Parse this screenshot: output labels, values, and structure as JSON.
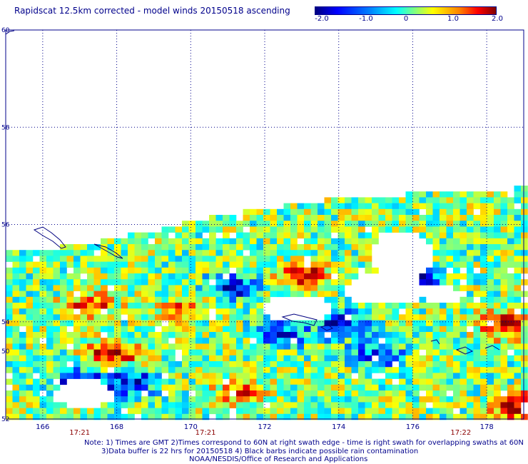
{
  "title": "Rapidscat 12.5km corrected - model winds 20150518 ascending",
  "colorbar": {
    "labels": [
      "-2.0",
      "-1.0",
      "0",
      "1.0",
      "2.0"
    ],
    "label_values": [
      -2.0,
      -1.0,
      0,
      1.0,
      2.0
    ],
    "range": [
      -2.0,
      2.0
    ],
    "colors": [
      "#00007f",
      "#0000ff",
      "#0080ff",
      "#00ffff",
      "#80ff80",
      "#ffff00",
      "#ff8000",
      "#ff0000",
      "#800000"
    ]
  },
  "map": {
    "lon_range": [
      165.0,
      179.0
    ],
    "lat_range": [
      52.0,
      60.0
    ],
    "lat_ticks": [
      {
        "value": 60,
        "label": "60"
      },
      {
        "value": 58,
        "label": "58"
      },
      {
        "value": 56,
        "label": "56"
      },
      {
        "value": 54,
        "label": "54"
      },
      {
        "value": 52,
        "label": "52"
      },
      {
        "value": 50,
        "label": "50"
      }
    ],
    "lon_ticks": [
      {
        "value": 166,
        "label": "166"
      },
      {
        "value": 168,
        "label": "168"
      },
      {
        "value": 170,
        "label": "170"
      },
      {
        "value": 172,
        "label": "172"
      },
      {
        "value": 174,
        "label": "174"
      },
      {
        "value": 176,
        "label": "176"
      },
      {
        "value": 178,
        "label": "178"
      }
    ],
    "time_labels": [
      {
        "lon": 167.0,
        "label": "17:21"
      },
      {
        "lon": 170.4,
        "label": "17:21"
      },
      {
        "lon": 177.3,
        "label": "17:22"
      }
    ],
    "hot_spots": [
      {
        "lon": 167.8,
        "lat": 53.4,
        "value": 1.9
      },
      {
        "lon": 167.2,
        "lat": 54.4,
        "value": 1.4
      },
      {
        "lon": 173.0,
        "lat": 55.0,
        "value": 1.6
      },
      {
        "lon": 178.4,
        "lat": 54.0,
        "value": 1.6
      },
      {
        "lon": 178.8,
        "lat": 52.3,
        "value": 2.0
      },
      {
        "lon": 171.2,
        "lat": 52.6,
        "value": 1.2
      },
      {
        "lon": 169.6,
        "lat": 54.3,
        "value": 1.0
      }
    ],
    "cold_spots": [
      {
        "lon": 166.9,
        "lat": 52.8,
        "value": -1.8
      },
      {
        "lon": 168.3,
        "lat": 52.8,
        "value": -1.7
      },
      {
        "lon": 171.0,
        "lat": 54.8,
        "value": -1.7
      },
      {
        "lon": 174.0,
        "lat": 54.0,
        "value": -1.8
      },
      {
        "lon": 176.0,
        "lat": 55.0,
        "value": -1.6
      },
      {
        "lon": 175.0,
        "lat": 53.4,
        "value": -1.5
      },
      {
        "lon": 172.4,
        "lat": 53.8,
        "value": -1.4
      }
    ]
  },
  "notes": {
    "line1": "Note: 1) Times are GMT 2)Times correspond to 60N at right swath edge - time is right swath for overlapping swaths at 60N",
    "line2": "3)Data buffer is 22 hrs for 20150518 4) Black barbs indicate possible rain contamination",
    "line3": "NOAA/NESDIS/Office of Research and Applications"
  }
}
